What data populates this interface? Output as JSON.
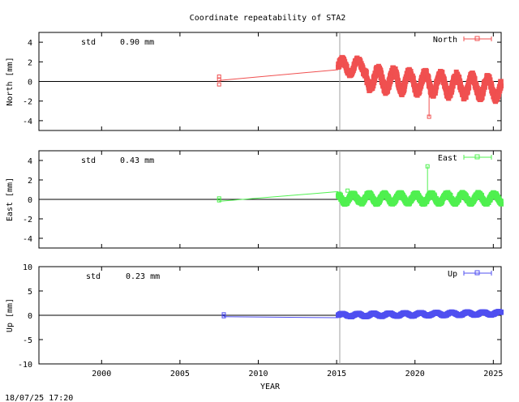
{
  "title": "Coordinate repeatability of STA2",
  "timestamp": "18/07/25 17:20",
  "xlabel": "YEAR",
  "x_ticks": [
    "2000",
    "2005",
    "2010",
    "2015",
    "2020",
    "2025"
  ],
  "colors": {
    "north": "#f05050",
    "east": "#50f050",
    "up": "#5050f0",
    "zero_line": "#000000",
    "marker_line": "#a0a0a0"
  },
  "chart_data": [
    {
      "type": "scatter",
      "panel": "north",
      "ylabel": "North [mm]",
      "legend": "North",
      "legend_position": "top-right",
      "std_label": "std",
      "std_value": "0.90 mm",
      "xlim": [
        1996,
        2025.5
      ],
      "ylim": [
        -5,
        5
      ],
      "y_ticks": [
        "4",
        "2",
        "0",
        "-2",
        "-4"
      ],
      "reference_epoch": 2015.2,
      "early_points": [
        [
          2007.5,
          0.5
        ],
        [
          2007.5,
          -0.3
        ],
        [
          2007.5,
          0.2
        ]
      ],
      "connector": [
        [
          2007.5,
          0.1
        ],
        [
          2015.1,
          1.2
        ]
      ],
      "series_segments": [
        {
          "x_start": 2015.1,
          "x_end": 2016.9,
          "offset": 1.5,
          "amplitude": 0.7,
          "period": 1.0,
          "phase": 0.0
        },
        {
          "x_start": 2016.9,
          "x_end": 2025.5,
          "offset": 0.3,
          "amplitude": 1.0,
          "period": 1.0,
          "phase": 0.5,
          "trend": -0.12
        }
      ],
      "outliers": [
        [
          2020.9,
          -3.6
        ]
      ],
      "spike_mark": [
        [
          2020.9,
          -0.8
        ],
        [
          2020.9,
          -3.6
        ]
      ]
    },
    {
      "type": "scatter",
      "panel": "east",
      "ylabel": "East [mm]",
      "legend": "East",
      "legend_position": "top-right",
      "std_label": "std",
      "std_value": "0.43 mm",
      "xlim": [
        1996,
        2025.5
      ],
      "ylim": [
        -5,
        5
      ],
      "y_ticks": [
        "4",
        "2",
        "0",
        "-2",
        "-4"
      ],
      "reference_epoch": 2015.2,
      "early_points": [
        [
          2007.5,
          0.1
        ],
        [
          2007.5,
          -0.1
        ]
      ],
      "connector": [
        [
          2007.5,
          -0.2
        ],
        [
          2015.1,
          0.8
        ]
      ],
      "series_segments": [
        {
          "x_start": 2015.1,
          "x_end": 2025.5,
          "offset": 0.1,
          "amplitude": 0.45,
          "period": 1.0,
          "phase": 0.3,
          "trend": 0.0
        }
      ],
      "outliers": [
        [
          2020.8,
          3.4
        ],
        [
          2015.7,
          0.9
        ]
      ],
      "spike_mark": [
        [
          2020.8,
          0.2
        ],
        [
          2020.8,
          3.4
        ]
      ]
    },
    {
      "type": "scatter",
      "panel": "up",
      "ylabel": "Up [mm]",
      "legend": "Up",
      "legend_position": "top-right",
      "std_label": "std",
      "std_value": "0.23 mm",
      "xlim": [
        1996,
        2025.5
      ],
      "ylim": [
        -10,
        10
      ],
      "y_ticks": [
        "10",
        "5",
        "0",
        "-5",
        "-10"
      ],
      "reference_epoch": 2015.2,
      "early_points": [
        [
          2007.8,
          0.2
        ],
        [
          2007.8,
          -0.2
        ]
      ],
      "connector": [
        [
          2007.8,
          -0.3
        ],
        [
          2015.1,
          -0.5
        ]
      ],
      "series_segments": [
        {
          "x_start": 2015.1,
          "x_end": 2025.5,
          "offset": 0.0,
          "amplitude": 0.3,
          "period": 1.0,
          "phase": 0.0,
          "trend": 0.04
        }
      ],
      "outliers": [],
      "spike_mark": []
    }
  ]
}
